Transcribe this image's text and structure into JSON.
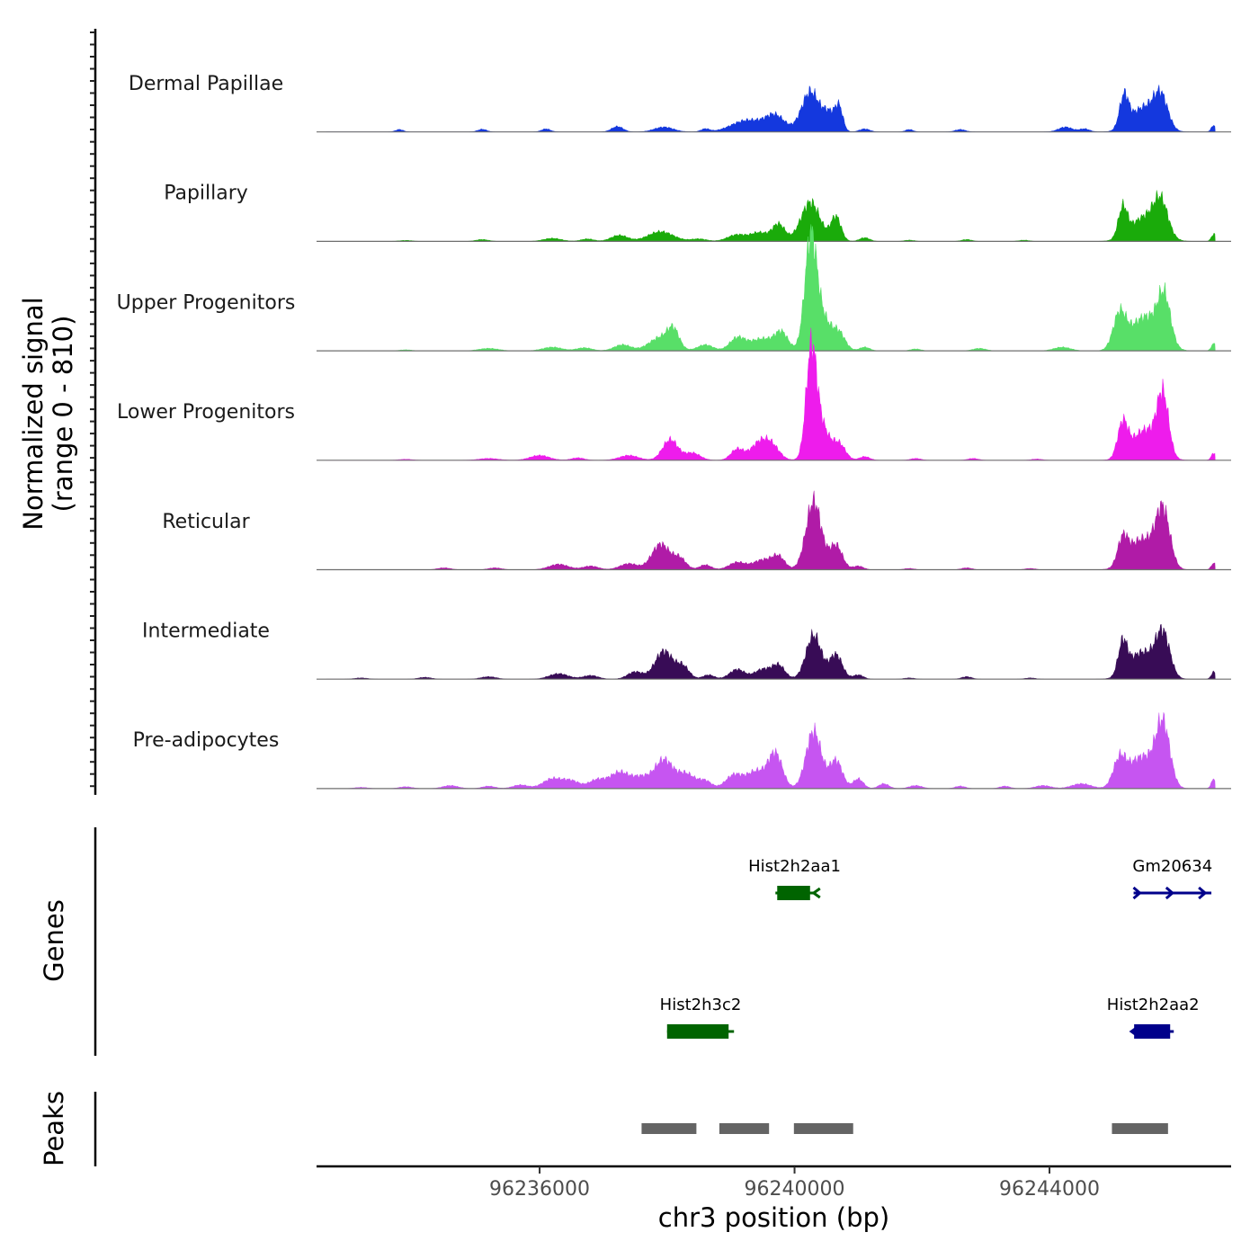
{
  "chart_data": {
    "type": "area",
    "title": "",
    "ylabel_line1": "Normalized signal",
    "ylabel_line2": "(range 0 - 810)",
    "xlabel": "chr3 position (bp)",
    "xlim": [
      96232500,
      96246850
    ],
    "ylim": [
      0,
      810
    ],
    "x_ticks": [
      {
        "value": 96236000,
        "label": "96236000"
      },
      {
        "value": 96240000,
        "label": "96240000"
      },
      {
        "value": 96244000,
        "label": "96244000"
      }
    ],
    "tracks": [
      {
        "name": "Dermal Papillae",
        "color": "#1438de",
        "peaks": [
          [
            96233800,
            20,
            60
          ],
          [
            96235100,
            22,
            70
          ],
          [
            96236100,
            25,
            70
          ],
          [
            96237220,
            45,
            90
          ],
          [
            96237950,
            40,
            150
          ],
          [
            96238600,
            25,
            70
          ],
          [
            96239100,
            45,
            200
          ],
          [
            96239350,
            70,
            200
          ],
          [
            96239700,
            130,
            150
          ],
          [
            96240250,
            330,
            140
          ],
          [
            96240550,
            140,
            100
          ],
          [
            96240700,
            180,
            60
          ],
          [
            96241100,
            25,
            80
          ],
          [
            96241800,
            20,
            60
          ],
          [
            96242600,
            20,
            80
          ],
          [
            96244250,
            40,
            110
          ],
          [
            96244550,
            25,
            80
          ],
          [
            96245170,
            260,
            70
          ],
          [
            96245480,
            200,
            200
          ],
          [
            96245750,
            250,
            110
          ],
          [
            96246580,
            55,
            40
          ]
        ]
      },
      {
        "name": "Papillary",
        "color": "#1aab0a",
        "peaks": [
          [
            96233900,
            8,
            100
          ],
          [
            96235100,
            15,
            100
          ],
          [
            96236200,
            25,
            140
          ],
          [
            96236750,
            20,
            100
          ],
          [
            96237250,
            50,
            130
          ],
          [
            96237900,
            80,
            200
          ],
          [
            96238500,
            20,
            120
          ],
          [
            96239100,
            55,
            150
          ],
          [
            96239450,
            70,
            130
          ],
          [
            96239750,
            140,
            100
          ],
          [
            96240250,
            320,
            150
          ],
          [
            96240650,
            200,
            80
          ],
          [
            96241100,
            30,
            80
          ],
          [
            96241800,
            10,
            80
          ],
          [
            96242700,
            15,
            80
          ],
          [
            96243600,
            10,
            80
          ],
          [
            96245150,
            240,
            70
          ],
          [
            96245500,
            200,
            220
          ],
          [
            96245750,
            260,
            110
          ],
          [
            96246580,
            60,
            40
          ]
        ]
      },
      {
        "name": "Upper Progenitors",
        "color": "#58df68",
        "peaks": [
          [
            96233900,
            8,
            100
          ],
          [
            96235200,
            20,
            150
          ],
          [
            96236200,
            30,
            150
          ],
          [
            96236700,
            25,
            120
          ],
          [
            96237300,
            50,
            130
          ],
          [
            96237900,
            110,
            180
          ],
          [
            96238100,
            140,
            90
          ],
          [
            96238600,
            50,
            120
          ],
          [
            96239100,
            100,
            120
          ],
          [
            96239500,
            100,
            200
          ],
          [
            96239800,
            130,
            100
          ],
          [
            96240250,
            780,
            90
          ],
          [
            96240400,
            300,
            150
          ],
          [
            96240700,
            130,
            100
          ],
          [
            96241100,
            30,
            80
          ],
          [
            96241900,
            15,
            80
          ],
          [
            96242900,
            20,
            100
          ],
          [
            96244200,
            30,
            130
          ],
          [
            96245100,
            280,
            100
          ],
          [
            96245500,
            280,
            220
          ],
          [
            96245800,
            380,
            100
          ],
          [
            96246580,
            60,
            40
          ]
        ]
      },
      {
        "name": "Lower Progenitors",
        "color": "#ee1cec",
        "peaks": [
          [
            96233900,
            8,
            100
          ],
          [
            96235200,
            15,
            150
          ],
          [
            96236000,
            40,
            150
          ],
          [
            96236600,
            20,
            100
          ],
          [
            96237400,
            40,
            150
          ],
          [
            96238050,
            170,
            120
          ],
          [
            96238400,
            60,
            120
          ],
          [
            96239100,
            90,
            100
          ],
          [
            96239450,
            140,
            140
          ],
          [
            96239650,
            100,
            120
          ],
          [
            96240260,
            790,
            80
          ],
          [
            96240400,
            300,
            130
          ],
          [
            96240700,
            130,
            100
          ],
          [
            96241100,
            30,
            80
          ],
          [
            96241900,
            15,
            80
          ],
          [
            96242800,
            15,
            80
          ],
          [
            96243800,
            10,
            80
          ],
          [
            96245150,
            280,
            80
          ],
          [
            96245500,
            250,
            200
          ],
          [
            96245780,
            480,
            90
          ],
          [
            96246580,
            60,
            40
          ]
        ]
      },
      {
        "name": "Reticular",
        "color": "#b01ba7",
        "peaks": [
          [
            96234500,
            15,
            100
          ],
          [
            96235300,
            15,
            100
          ],
          [
            96236300,
            45,
            150
          ],
          [
            96236800,
            30,
            120
          ],
          [
            96237400,
            50,
            140
          ],
          [
            96237900,
            210,
            140
          ],
          [
            96238200,
            90,
            100
          ],
          [
            96238600,
            40,
            90
          ],
          [
            96239100,
            60,
            130
          ],
          [
            96239500,
            80,
            150
          ],
          [
            96239750,
            100,
            100
          ],
          [
            96240300,
            560,
            120
          ],
          [
            96240650,
            200,
            100
          ],
          [
            96241000,
            30,
            80
          ],
          [
            96241800,
            10,
            80
          ],
          [
            96242700,
            15,
            80
          ],
          [
            96243700,
            10,
            80
          ],
          [
            96245150,
            210,
            80
          ],
          [
            96245450,
            250,
            200
          ],
          [
            96245780,
            460,
            110
          ],
          [
            96246580,
            55,
            40
          ]
        ]
      },
      {
        "name": "Intermediate",
        "color": "#380c56",
        "peaks": [
          [
            96233200,
            10,
            100
          ],
          [
            96234200,
            15,
            100
          ],
          [
            96235200,
            20,
            120
          ],
          [
            96236300,
            45,
            150
          ],
          [
            96236800,
            30,
            120
          ],
          [
            96237500,
            60,
            120
          ],
          [
            96237950,
            230,
            140
          ],
          [
            96238250,
            100,
            100
          ],
          [
            96238650,
            35,
            90
          ],
          [
            96239100,
            80,
            120
          ],
          [
            96239500,
            80,
            130
          ],
          [
            96239750,
            110,
            100
          ],
          [
            96240300,
            360,
            120
          ],
          [
            96240650,
            200,
            100
          ],
          [
            96241000,
            35,
            80
          ],
          [
            96241800,
            10,
            80
          ],
          [
            96242700,
            20,
            80
          ],
          [
            96243700,
            10,
            80
          ],
          [
            96245150,
            260,
            70
          ],
          [
            96245450,
            220,
            200
          ],
          [
            96245780,
            350,
            110
          ],
          [
            96246580,
            60,
            40
          ]
        ]
      },
      {
        "name": "Pre-adipocytes",
        "color": "#c655f1",
        "peaks": [
          [
            96233200,
            10,
            100
          ],
          [
            96233900,
            15,
            100
          ],
          [
            96234600,
            25,
            120
          ],
          [
            96235200,
            20,
            100
          ],
          [
            96235700,
            30,
            120
          ],
          [
            96236200,
            80,
            150
          ],
          [
            96236500,
            60,
            130
          ],
          [
            96236900,
            70,
            130
          ],
          [
            96237250,
            130,
            150
          ],
          [
            96237600,
            90,
            150
          ],
          [
            96237950,
            230,
            140
          ],
          [
            96238300,
            120,
            140
          ],
          [
            96238600,
            60,
            100
          ],
          [
            96239050,
            110,
            130
          ],
          [
            96239400,
            140,
            150
          ],
          [
            96239700,
            280,
            110
          ],
          [
            96240300,
            470,
            120
          ],
          [
            96240650,
            230,
            100
          ],
          [
            96241000,
            80,
            80
          ],
          [
            96241400,
            40,
            80
          ],
          [
            96241900,
            25,
            100
          ],
          [
            96242600,
            20,
            80
          ],
          [
            96243300,
            20,
            80
          ],
          [
            96243900,
            25,
            120
          ],
          [
            96244500,
            40,
            150
          ],
          [
            96245100,
            220,
            100
          ],
          [
            96245450,
            260,
            200
          ],
          [
            96245780,
            500,
            110
          ],
          [
            96246580,
            80,
            40
          ]
        ]
      }
    ],
    "genes": [
      {
        "name": "Hist2h2aa1",
        "start": 96239700,
        "end": 96240300,
        "strand": "-",
        "color": "#006400",
        "row": 1
      },
      {
        "name": "Gm20634",
        "start": 96245320,
        "end": 96246540,
        "strand": "+",
        "color": "#00008b",
        "row": 1
      },
      {
        "name": "Hist2h3c2",
        "start": 96238000,
        "end": 96239050,
        "strand": "+",
        "color": "#006400",
        "row": 2
      },
      {
        "name": "Hist2h2aa2",
        "start": 96245300,
        "end": 96245950,
        "strand": "-",
        "color": "#00008b",
        "row": 2
      }
    ],
    "genes_label": "Genes",
    "peaks_label": "Peaks",
    "peak_regions": [
      [
        96237600,
        96238460
      ],
      [
        96238820,
        96239600
      ],
      [
        96239990,
        96240920
      ],
      [
        96244980,
        96245860
      ]
    ],
    "peak_color": "#646464"
  }
}
